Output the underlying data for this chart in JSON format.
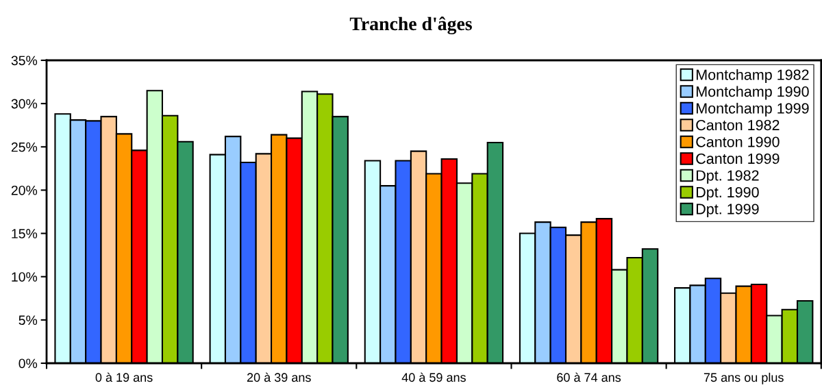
{
  "chart_data": {
    "type": "bar",
    "title": "Tranche d'âges",
    "categories": [
      "0 à 19 ans",
      "20 à 39 ans",
      "40 à 59 ans",
      "60 à 74 ans",
      "75 ans ou plus"
    ],
    "series": [
      {
        "name": "Montchamp 1982",
        "color": "#ccffff",
        "values": [
          28.8,
          24.1,
          23.4,
          15.0,
          8.7
        ]
      },
      {
        "name": "Montchamp 1990",
        "color": "#99ccff",
        "values": [
          28.1,
          26.2,
          20.5,
          16.3,
          9.0
        ]
      },
      {
        "name": "Montchamp 1999",
        "color": "#3366ff",
        "values": [
          28.0,
          23.2,
          23.4,
          15.7,
          9.8
        ]
      },
      {
        "name": "Canton 1982",
        "color": "#ffcc99",
        "values": [
          28.5,
          24.2,
          24.5,
          14.8,
          8.1
        ]
      },
      {
        "name": "Canton 1990",
        "color": "#ff9900",
        "values": [
          26.5,
          26.4,
          21.9,
          16.3,
          8.9
        ]
      },
      {
        "name": "Canton 1999",
        "color": "#ff0000",
        "values": [
          24.6,
          26.0,
          23.6,
          16.7,
          9.1
        ]
      },
      {
        "name": "Dpt. 1982",
        "color": "#ccffcc",
        "values": [
          31.5,
          31.4,
          20.8,
          10.8,
          5.5
        ]
      },
      {
        "name": "Dpt. 1990",
        "color": "#99cc00",
        "values": [
          28.6,
          31.1,
          21.9,
          12.2,
          6.2
        ]
      },
      {
        "name": "Dpt. 1999",
        "color": "#339966",
        "values": [
          25.6,
          28.5,
          25.5,
          13.2,
          7.2
        ]
      }
    ],
    "ylim": [
      0,
      35
    ],
    "yticks": [
      {
        "value": 0,
        "label": "0%"
      },
      {
        "value": 5,
        "label": "5%"
      },
      {
        "value": 10,
        "label": "10%"
      },
      {
        "value": 15,
        "label": "15%"
      },
      {
        "value": 20,
        "label": "20%"
      },
      {
        "value": 25,
        "label": "25%"
      },
      {
        "value": 30,
        "label": "30%"
      },
      {
        "value": 35,
        "label": "35%"
      }
    ],
    "grid": false,
    "legend": "top right"
  }
}
